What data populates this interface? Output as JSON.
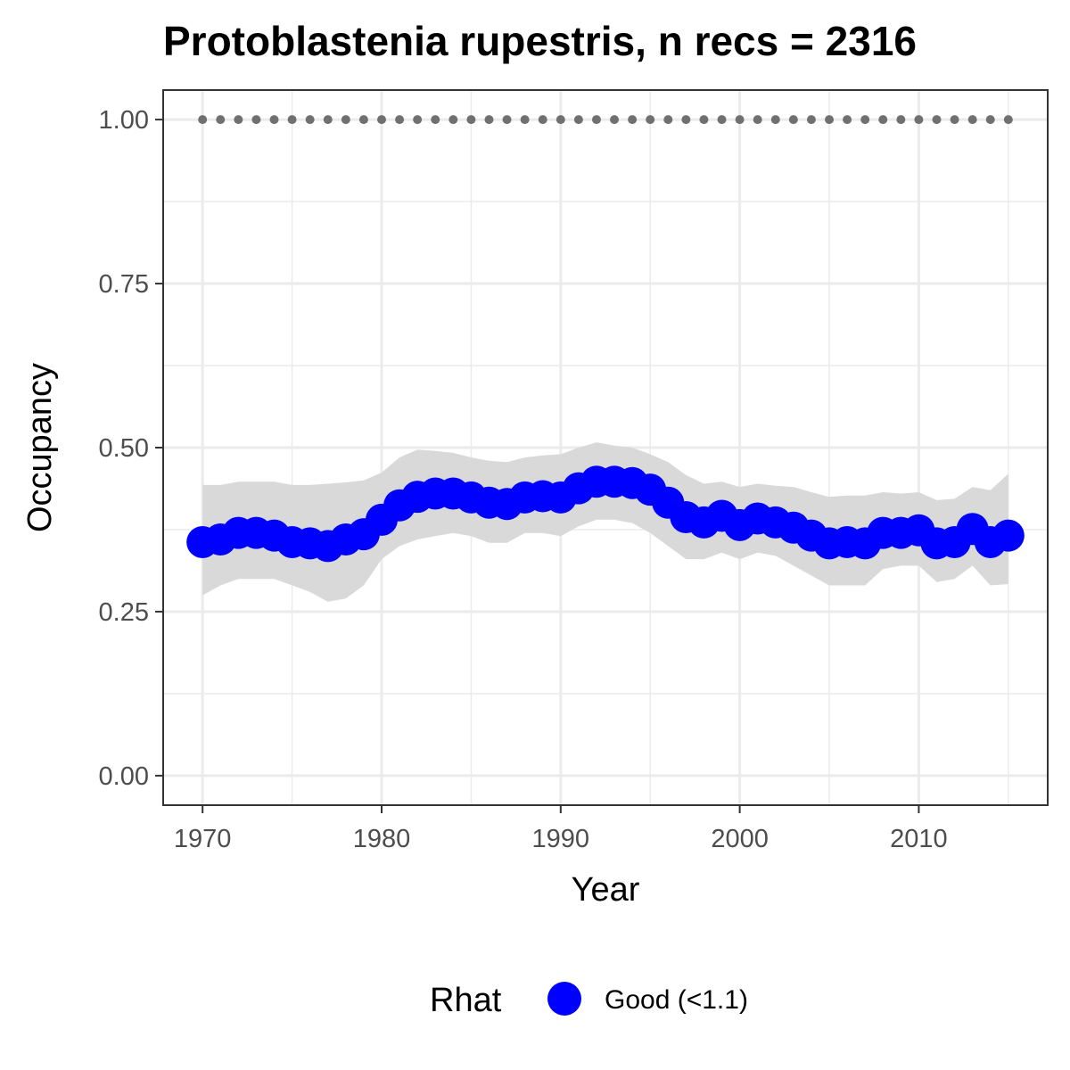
{
  "chart_data": {
    "type": "line",
    "title": "Protoblastenia rupestris, n recs = 2316",
    "xlabel": "Year",
    "ylabel": "Occupancy",
    "xlim": [
      1967.8,
      2017.2
    ],
    "ylim": [
      -0.045,
      1.045
    ],
    "x_ticks": [
      1970,
      1980,
      1990,
      2000,
      2010
    ],
    "x_tick_labels": [
      "1970",
      "1980",
      "1990",
      "2000",
      "2010"
    ],
    "y_ticks": [
      0,
      0.25,
      0.5,
      0.75,
      1.0
    ],
    "y_tick_labels": [
      "0.00",
      "0.25",
      "0.50",
      "0.75",
      "1.00"
    ],
    "grid": true,
    "legend": {
      "title": "Rhat",
      "position": "bottom",
      "entries": [
        {
          "label": "Good (<1.1)",
          "color": "#0000ff"
        }
      ]
    },
    "colors": {
      "points": "#0000ff",
      "ribbon": "#d9d9d9",
      "reference": "#707070"
    },
    "series": [
      {
        "name": "Good (<1.1)",
        "x": [
          1970,
          1971,
          1972,
          1973,
          1974,
          1975,
          1976,
          1977,
          1978,
          1979,
          1980,
          1981,
          1982,
          1983,
          1984,
          1985,
          1986,
          1987,
          1988,
          1989,
          1990,
          1991,
          1992,
          1993,
          1994,
          1995,
          1996,
          1997,
          1998,
          1999,
          2000,
          2001,
          2002,
          2003,
          2004,
          2005,
          2006,
          2007,
          2008,
          2009,
          2010,
          2011,
          2012,
          2013,
          2014,
          2015
        ],
        "y": [
          0.356,
          0.36,
          0.37,
          0.37,
          0.366,
          0.356,
          0.354,
          0.35,
          0.36,
          0.368,
          0.39,
          0.412,
          0.425,
          0.43,
          0.43,
          0.424,
          0.416,
          0.414,
          0.424,
          0.426,
          0.424,
          0.438,
          0.448,
          0.448,
          0.446,
          0.436,
          0.416,
          0.394,
          0.386,
          0.396,
          0.382,
          0.392,
          0.386,
          0.378,
          0.366,
          0.354,
          0.356,
          0.354,
          0.37,
          0.37,
          0.374,
          0.354,
          0.356,
          0.376,
          0.356,
          0.366
        ],
        "lower": [
          0.275,
          0.29,
          0.3,
          0.3,
          0.3,
          0.29,
          0.28,
          0.265,
          0.27,
          0.29,
          0.33,
          0.35,
          0.36,
          0.365,
          0.37,
          0.365,
          0.355,
          0.355,
          0.37,
          0.37,
          0.365,
          0.38,
          0.39,
          0.39,
          0.385,
          0.37,
          0.35,
          0.33,
          0.33,
          0.34,
          0.33,
          0.34,
          0.335,
          0.32,
          0.305,
          0.29,
          0.29,
          0.29,
          0.315,
          0.32,
          0.32,
          0.295,
          0.3,
          0.32,
          0.29,
          0.292
        ],
        "upper": [
          0.443,
          0.443,
          0.448,
          0.448,
          0.448,
          0.443,
          0.443,
          0.445,
          0.447,
          0.45,
          0.462,
          0.485,
          0.497,
          0.495,
          0.492,
          0.485,
          0.48,
          0.478,
          0.485,
          0.488,
          0.49,
          0.5,
          0.508,
          0.503,
          0.5,
          0.49,
          0.478,
          0.458,
          0.445,
          0.448,
          0.44,
          0.445,
          0.442,
          0.44,
          0.432,
          0.425,
          0.427,
          0.427,
          0.432,
          0.43,
          0.432,
          0.42,
          0.422,
          0.44,
          0.435,
          0.46
        ]
      }
    ],
    "reference_line": {
      "y": 1.0,
      "x": [
        1970,
        1971,
        1972,
        1973,
        1974,
        1975,
        1976,
        1977,
        1978,
        1979,
        1980,
        1981,
        1982,
        1983,
        1984,
        1985,
        1986,
        1987,
        1988,
        1989,
        1990,
        1991,
        1992,
        1993,
        1994,
        1995,
        1996,
        1997,
        1998,
        1999,
        2000,
        2001,
        2002,
        2003,
        2004,
        2005,
        2006,
        2007,
        2008,
        2009,
        2010,
        2011,
        2012,
        2013,
        2014,
        2015
      ]
    }
  }
}
